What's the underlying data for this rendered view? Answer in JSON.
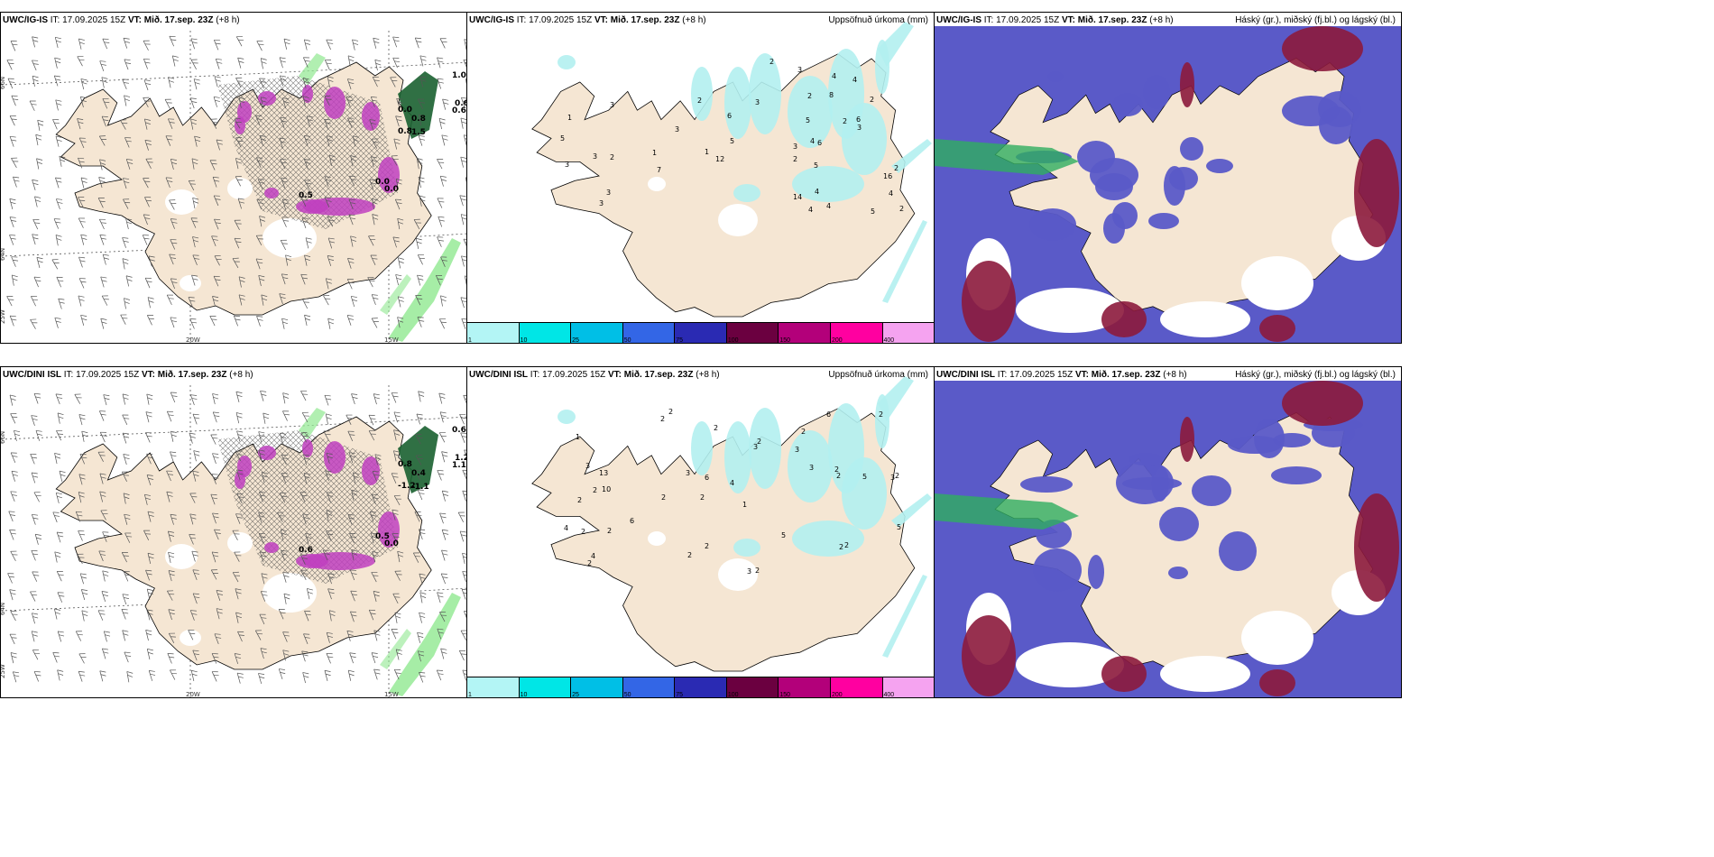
{
  "rows": [
    {
      "id": "igis",
      "model": "UWC/IG-IS",
      "it_label": "IT: 17.09.2025 15Z",
      "vt_label": "VT: Mið. 17.sep. 23Z",
      "lead": "(+8 h)",
      "wind_values": [
        "1.0",
        "0.6",
        "0.6",
        "0.8",
        "1.5",
        "0.0",
        "0.5",
        "0.0",
        "0.0",
        "0.8"
      ],
      "precip_values": [
        "2",
        "2",
        "2",
        "16",
        "14",
        "8",
        "6",
        "6",
        "4",
        "4",
        "4",
        "3",
        "3",
        "5",
        "7",
        "5",
        "4",
        "3",
        "4",
        "2",
        "12",
        "5",
        "5",
        "3",
        "3",
        "3",
        "3",
        "2",
        "2",
        "2",
        "2",
        "2",
        "1",
        "4",
        "3",
        "3",
        "3",
        "5",
        "6",
        "4",
        "1",
        "1"
      ]
    },
    {
      "id": "dini",
      "model": "UWC/DINI ISL",
      "it_label": "IT: 17.09.2025 15Z",
      "vt_label": "VT: Mið. 17.sep. 23Z",
      "lead": "(+8 h)",
      "wind_values": [
        "0.6",
        "1.2",
        "1.1",
        "-1.2",
        "-1.1",
        "0.0",
        "0.6",
        "0.5",
        "0.8",
        "0.4"
      ],
      "precip_values": [
        "2",
        "2",
        "3",
        "2",
        "1",
        "10",
        "1",
        "3",
        "2",
        "3",
        "4",
        "2",
        "2",
        "2",
        "3",
        "2",
        "2",
        "6",
        "3",
        "6",
        "13",
        "2",
        "2",
        "5",
        "4",
        "3",
        "6",
        "2",
        "2",
        "2",
        "2",
        "2",
        "2",
        "3",
        "5",
        "5",
        "2",
        "2",
        "2",
        "2",
        "4"
      ]
    }
  ],
  "precip_title": "Uppsöfnuð úrkoma (mm)",
  "cloud_title": "Háský (gr.), miðský (fj.bl.) og lágský (bl.)",
  "lon_labels": [
    "20W",
    "15W"
  ],
  "lat_labels": [
    "66N",
    "64N",
    "25W"
  ],
  "legend": {
    "ticks": [
      "1",
      "10",
      "25",
      "50",
      "75",
      "100",
      "150",
      "200",
      "400"
    ],
    "colors": [
      "#b3f5f5",
      "#00e6e6",
      "#00bfe6",
      "#3366e6",
      "#2a2ab3",
      "#6b0040",
      "#b3007a",
      "#ff00a0",
      "#f5a3f0"
    ]
  },
  "colors": {
    "land": "#f5e6d3",
    "coast": "#000000",
    "precip": "#b3f0f0",
    "wind_green": "#90e890",
    "wind_purple": "#c040c0",
    "cloud_blue": "#5a5ac8",
    "cloud_red": "#8c1a3c",
    "cloud_white": "#ffffff"
  }
}
